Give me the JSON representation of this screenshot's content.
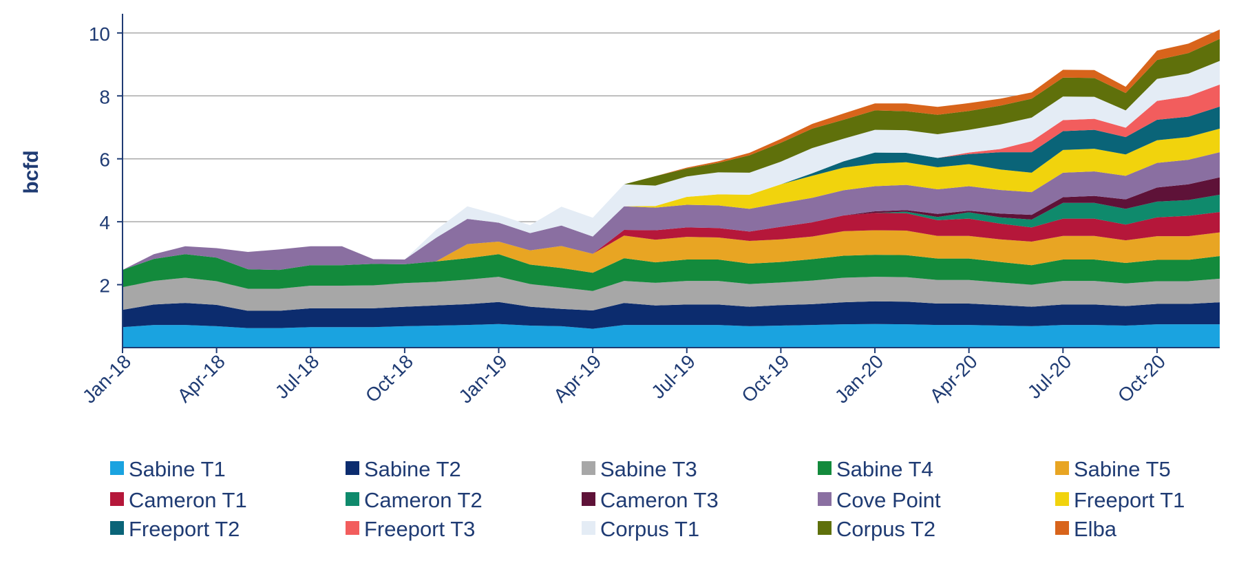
{
  "chart_data": {
    "type": "area",
    "stacked": true,
    "title": "",
    "xlabel": "",
    "ylabel": "bcfd",
    "ylim": [
      0,
      10.5
    ],
    "yticks": [
      "2",
      "4",
      "6",
      "8",
      "10"
    ],
    "grid": true,
    "legend_position": "bottom",
    "x": [
      "Jan-18",
      "Feb-18",
      "Mar-18",
      "Apr-18",
      "May-18",
      "Jun-18",
      "Jul-18",
      "Aug-18",
      "Sep-18",
      "Oct-18",
      "Nov-18",
      "Dec-18",
      "Jan-19",
      "Feb-19",
      "Mar-19",
      "Apr-19",
      "May-19",
      "Jun-19",
      "Jul-19",
      "Aug-19",
      "Sep-19",
      "Oct-19",
      "Nov-19",
      "Dec-19",
      "Jan-20",
      "Feb-20",
      "Mar-20",
      "Apr-20",
      "May-20",
      "Jun-20",
      "Jul-20",
      "Aug-20",
      "Sep-20",
      "Oct-20",
      "Nov-20",
      "Dec-20"
    ],
    "xticks": [
      "Jan-18",
      "Apr-18",
      "Jul-18",
      "Oct-18",
      "Jan-19",
      "Apr-19",
      "Jul-19",
      "Oct-19",
      "Jan-20",
      "Apr-20",
      "Jul-20",
      "Oct-20"
    ],
    "series": [
      {
        "name": "Sabine T1",
        "color": "#1aa3e0",
        "values": [
          0.65,
          0.72,
          0.72,
          0.68,
          0.62,
          0.62,
          0.65,
          0.65,
          0.65,
          0.68,
          0.7,
          0.72,
          0.75,
          0.7,
          0.68,
          0.6,
          0.72,
          0.72,
          0.72,
          0.72,
          0.68,
          0.7,
          0.72,
          0.74,
          0.75,
          0.74,
          0.72,
          0.72,
          0.7,
          0.68,
          0.72,
          0.72,
          0.7,
          0.74,
          0.74,
          0.74
        ]
      },
      {
        "name": "Sabine T2",
        "color": "#0c2c6e",
        "values": [
          0.55,
          0.65,
          0.7,
          0.68,
          0.55,
          0.55,
          0.6,
          0.6,
          0.6,
          0.62,
          0.64,
          0.66,
          0.7,
          0.6,
          0.55,
          0.58,
          0.7,
          0.62,
          0.65,
          0.65,
          0.62,
          0.65,
          0.66,
          0.7,
          0.72,
          0.72,
          0.68,
          0.68,
          0.65,
          0.62,
          0.65,
          0.65,
          0.62,
          0.65,
          0.65,
          0.7
        ]
      },
      {
        "name": "Sabine T3",
        "color": "#a7a7a7",
        "values": [
          0.72,
          0.75,
          0.8,
          0.75,
          0.7,
          0.7,
          0.72,
          0.72,
          0.73,
          0.75,
          0.75,
          0.78,
          0.8,
          0.72,
          0.68,
          0.62,
          0.7,
          0.72,
          0.75,
          0.75,
          0.72,
          0.72,
          0.75,
          0.78,
          0.78,
          0.78,
          0.75,
          0.75,
          0.72,
          0.7,
          0.75,
          0.75,
          0.72,
          0.72,
          0.72,
          0.75
        ]
      },
      {
        "name": "Sabine T4",
        "color": "#138a3c",
        "values": [
          0.55,
          0.7,
          0.75,
          0.75,
          0.62,
          0.6,
          0.65,
          0.65,
          0.68,
          0.6,
          0.65,
          0.68,
          0.72,
          0.62,
          0.62,
          0.58,
          0.72,
          0.65,
          0.68,
          0.68,
          0.65,
          0.65,
          0.68,
          0.7,
          0.7,
          0.7,
          0.68,
          0.68,
          0.65,
          0.62,
          0.68,
          0.68,
          0.65,
          0.68,
          0.68,
          0.72
        ]
      },
      {
        "name": "Sabine T5",
        "color": "#e8a523",
        "values": [
          0,
          0,
          0,
          0,
          0,
          0,
          0,
          0,
          0,
          0,
          0,
          0.45,
          0.4,
          0.45,
          0.7,
          0.6,
          0.72,
          0.72,
          0.72,
          0.7,
          0.72,
          0.72,
          0.72,
          0.78,
          0.78,
          0.78,
          0.72,
          0.72,
          0.72,
          0.75,
          0.75,
          0.75,
          0.72,
          0.75,
          0.75,
          0.75
        ]
      },
      {
        "name": "Cameron T1",
        "color": "#b5173a",
        "values": [
          0,
          0,
          0,
          0,
          0,
          0,
          0,
          0,
          0,
          0,
          0,
          0,
          0,
          0,
          0,
          0,
          0.18,
          0.3,
          0.3,
          0.3,
          0.3,
          0.4,
          0.45,
          0.5,
          0.55,
          0.55,
          0.5,
          0.55,
          0.5,
          0.45,
          0.55,
          0.55,
          0.5,
          0.6,
          0.65,
          0.65
        ]
      },
      {
        "name": "Cameron T2",
        "color": "#0f8a6c",
        "values": [
          0,
          0,
          0,
          0,
          0,
          0,
          0,
          0,
          0,
          0,
          0,
          0,
          0,
          0,
          0,
          0,
          0,
          0,
          0,
          0,
          0,
          0,
          0,
          0,
          0,
          0.05,
          0.1,
          0.2,
          0.2,
          0.25,
          0.5,
          0.5,
          0.5,
          0.5,
          0.5,
          0.55
        ]
      },
      {
        "name": "Cameron T3",
        "color": "#5e1238",
        "values": [
          0,
          0,
          0,
          0,
          0,
          0,
          0,
          0,
          0,
          0,
          0,
          0,
          0,
          0,
          0,
          0,
          0,
          0,
          0,
          0,
          0,
          0,
          0,
          0,
          0.05,
          0.05,
          0.1,
          0.05,
          0.12,
          0.15,
          0.18,
          0.22,
          0.3,
          0.45,
          0.5,
          0.55
        ]
      },
      {
        "name": "Cove Point",
        "color": "#8a6fa1",
        "values": [
          0,
          0.15,
          0.25,
          0.3,
          0.55,
          0.65,
          0.6,
          0.6,
          0.15,
          0.15,
          0.75,
          0.8,
          0.6,
          0.55,
          0.65,
          0.55,
          0.75,
          0.72,
          0.72,
          0.72,
          0.72,
          0.75,
          0.78,
          0.8,
          0.8,
          0.8,
          0.78,
          0.78,
          0.75,
          0.72,
          0.78,
          0.78,
          0.75,
          0.78,
          0.78,
          0.8
        ]
      },
      {
        "name": "Freeport T1",
        "color": "#f1d30d",
        "values": [
          0,
          0,
          0,
          0,
          0,
          0,
          0,
          0,
          0,
          0,
          0,
          0,
          0,
          0,
          0,
          0,
          0,
          0.05,
          0.25,
          0.35,
          0.45,
          0.6,
          0.7,
          0.72,
          0.72,
          0.72,
          0.7,
          0.7,
          0.65,
          0.62,
          0.72,
          0.72,
          0.68,
          0.72,
          0.72,
          0.75
        ]
      },
      {
        "name": "Freeport T2",
        "color": "#0a6478",
        "values": [
          0,
          0,
          0,
          0,
          0,
          0,
          0,
          0,
          0,
          0,
          0,
          0,
          0,
          0,
          0,
          0,
          0,
          0,
          0,
          0,
          0,
          0,
          0.08,
          0.2,
          0.35,
          0.3,
          0.3,
          0.32,
          0.55,
          0.65,
          0.6,
          0.6,
          0.55,
          0.65,
          0.65,
          0.7
        ]
      },
      {
        "name": "Freeport T3",
        "color": "#f25d5d",
        "values": [
          0,
          0,
          0,
          0,
          0,
          0,
          0,
          0,
          0,
          0,
          0,
          0,
          0,
          0,
          0,
          0,
          0,
          0,
          0,
          0,
          0,
          0,
          0,
          0,
          0,
          0,
          0,
          0.05,
          0.1,
          0.35,
          0.35,
          0.35,
          0.3,
          0.6,
          0.65,
          0.7
        ]
      },
      {
        "name": "Corpus T1",
        "color": "#e4ecf5",
        "values": [
          0,
          0,
          0,
          0,
          0,
          0,
          0,
          0,
          0,
          0,
          0.25,
          0.4,
          0.25,
          0.25,
          0.6,
          0.6,
          0.7,
          0.65,
          0.65,
          0.7,
          0.7,
          0.72,
          0.8,
          0.72,
          0.72,
          0.72,
          0.75,
          0.72,
          0.78,
          0.75,
          0.75,
          0.7,
          0.55,
          0.7,
          0.72,
          0.75
        ]
      },
      {
        "name": "Corpus T2",
        "color": "#5f700b",
        "values": [
          0,
          0,
          0,
          0,
          0,
          0,
          0,
          0,
          0,
          0,
          0,
          0,
          0,
          0,
          0,
          0,
          0,
          0.3,
          0.25,
          0.3,
          0.55,
          0.6,
          0.62,
          0.6,
          0.62,
          0.6,
          0.62,
          0.6,
          0.6,
          0.6,
          0.6,
          0.6,
          0.55,
          0.6,
          0.65,
          0.7
        ]
      },
      {
        "name": "Elba",
        "color": "#d8641b",
        "values": [
          0,
          0,
          0,
          0,
          0,
          0,
          0,
          0,
          0,
          0,
          0,
          0,
          0,
          0,
          0,
          0,
          0,
          0,
          0.03,
          0.05,
          0.08,
          0.12,
          0.15,
          0.2,
          0.22,
          0.25,
          0.25,
          0.25,
          0.22,
          0.2,
          0.25,
          0.25,
          0.2,
          0.3,
          0.3,
          0.3
        ]
      }
    ]
  }
}
